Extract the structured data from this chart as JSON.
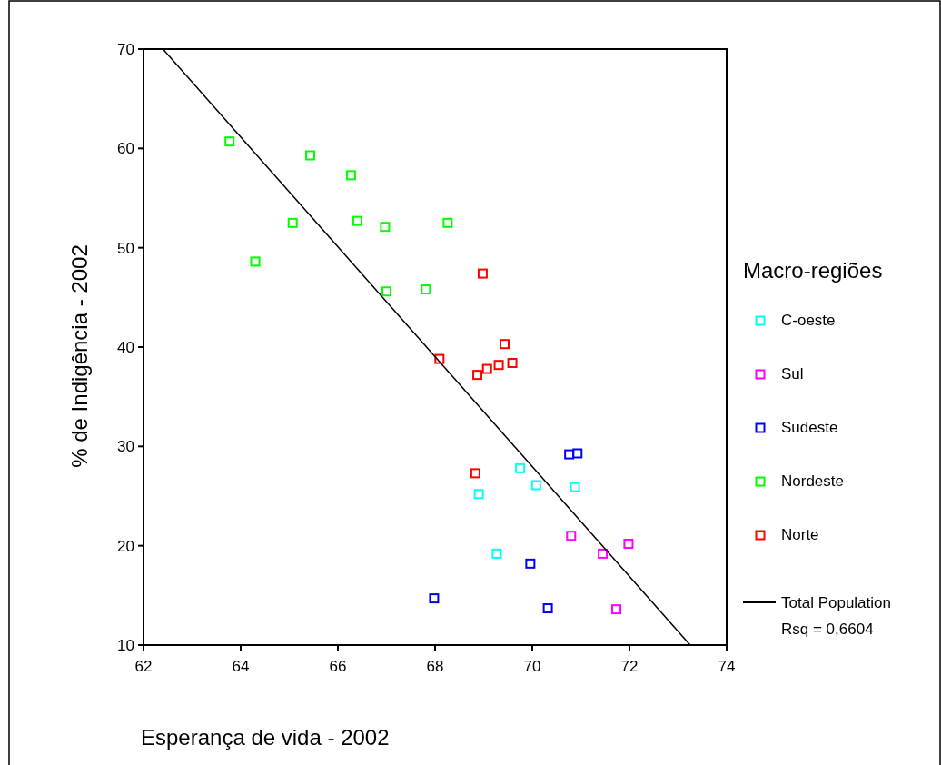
{
  "chart_data": {
    "type": "scatter",
    "xlabel": "Esperança de vida - 2002",
    "ylabel": "% de Indigência - 2002",
    "legend_title": "Macro-regiões",
    "legend": "right",
    "marker": "square",
    "xlim": [
      62,
      74
    ],
    "xticks": [
      62,
      64,
      66,
      68,
      70,
      72,
      74
    ],
    "ylim": [
      10,
      70
    ],
    "yticks": [
      10,
      20,
      30,
      40,
      50,
      60,
      70
    ],
    "grid": false,
    "series": [
      {
        "name": "C-oeste",
        "color": "#00ffff",
        "x": [
          69.75,
          70.08,
          70.88,
          68.9,
          69.27
        ],
        "values": [
          27.8,
          26.1,
          25.9,
          25.2,
          19.2
        ]
      },
      {
        "name": "Sul",
        "color": "#ff00ff",
        "x": [
          70.8,
          71.98,
          71.45,
          71.73
        ],
        "values": [
          21.0,
          20.2,
          19.2,
          13.6
        ]
      },
      {
        "name": "Sudeste",
        "color": "#0000ff",
        "x": [
          70.76,
          70.93,
          69.96,
          67.98,
          70.32
        ],
        "values": [
          29.2,
          29.3,
          18.2,
          14.7,
          13.7
        ]
      },
      {
        "name": "Nordeste",
        "color": "#00ff00",
        "x": [
          63.77,
          65.43,
          66.27,
          65.07,
          66.4,
          66.97,
          68.26,
          64.3,
          67.0,
          67.81
        ],
        "values": [
          60.7,
          59.3,
          57.3,
          52.5,
          52.7,
          52.1,
          52.5,
          48.6,
          45.6,
          45.8
        ]
      },
      {
        "name": "Norte",
        "color": "#ff0000",
        "x": [
          68.98,
          68.09,
          69.43,
          68.87,
          69.07,
          69.31,
          69.59,
          68.83
        ],
        "values": [
          47.4,
          38.8,
          40.3,
          37.2,
          37.8,
          38.2,
          38.4,
          27.3
        ]
      },
      {
        "name": "Total Population",
        "type": "line",
        "color": "#000000",
        "marker": "none",
        "line_style": "solid",
        "x": [
          62.4,
          73.25
        ],
        "values": [
          70,
          10
        ]
      }
    ],
    "annotations": [
      "Rsq = 0,6604"
    ]
  }
}
